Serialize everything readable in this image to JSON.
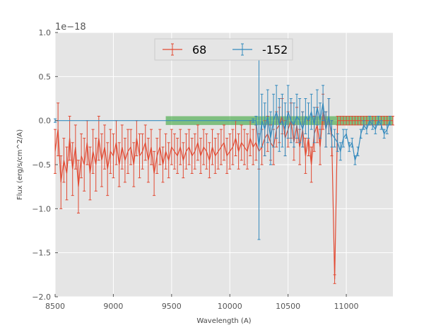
{
  "chart_data": {
    "type": "line",
    "title": "",
    "xlabel": "Wavelength (A)",
    "ylabel": "Flux (erg/s/cm^2/A)",
    "y_offset_label": "1e−18",
    "xlim": [
      8500,
      11400
    ],
    "ylim": [
      -2.0,
      1.0
    ],
    "x_ticks": [
      8500,
      9000,
      9500,
      10000,
      10500,
      11000
    ],
    "y_ticks": [
      1.0,
      0.5,
      0.0,
      -0.5,
      -1.0,
      -1.5,
      -2.0
    ],
    "x_tick_labels": [
      "8500",
      "9000",
      "9500",
      "10000",
      "10500",
      "11000"
    ],
    "y_tick_labels": [
      "1.0",
      "0.5",
      "0.0",
      "−0.5",
      "−1.0",
      "−1.5",
      "−2.0"
    ],
    "legend_position": "top-center",
    "grid": true,
    "background_color": "#e5e5e5",
    "series": [
      {
        "name": "68",
        "color": "#e24a33",
        "x": [
          8500,
          8525,
          8550,
          8575,
          8600,
          8625,
          8650,
          8675,
          8700,
          8725,
          8750,
          8775,
          8800,
          8825,
          8850,
          8875,
          8900,
          8925,
          8950,
          8975,
          9000,
          9025,
          9050,
          9075,
          9100,
          9125,
          9150,
          9175,
          9200,
          9225,
          9250,
          9275,
          9300,
          9325,
          9350,
          9375,
          9400,
          9425,
          9450,
          9475,
          9500,
          9525,
          9550,
          9575,
          9600,
          9625,
          9650,
          9675,
          9700,
          9725,
          9750,
          9775,
          9800,
          9825,
          9850,
          9875,
          9900,
          9925,
          9950,
          9975,
          10000,
          10025,
          10050,
          10075,
          10100,
          10125,
          10150,
          10175,
          10200,
          10225,
          10250,
          10275,
          10300,
          10325,
          10350,
          10375,
          10400,
          10425,
          10450,
          10475,
          10500,
          10525,
          10550,
          10575,
          10600,
          10625,
          10650,
          10675,
          10700,
          10725,
          10750,
          10775,
          10800,
          10825,
          10850,
          10875,
          10900,
          10925,
          10950,
          10975,
          11000,
          11025,
          11050,
          11075,
          11100,
          11125,
          11150,
          11175,
          11200,
          11225,
          11250,
          11275,
          11300,
          11325,
          11350,
          11375,
          11400
        ],
        "y": [
          -0.35,
          -0.1,
          -0.7,
          -0.45,
          -0.6,
          -0.2,
          -0.55,
          -0.3,
          -0.75,
          -0.4,
          -0.5,
          -0.25,
          -0.6,
          -0.35,
          -0.5,
          -0.2,
          -0.45,
          -0.3,
          -0.55,
          -0.35,
          -0.4,
          -0.25,
          -0.5,
          -0.3,
          -0.45,
          -0.35,
          -0.3,
          -0.5,
          -0.2,
          -0.4,
          -0.35,
          -0.25,
          -0.45,
          -0.3,
          -0.6,
          -0.4,
          -0.3,
          -0.5,
          -0.35,
          -0.45,
          -0.3,
          -0.35,
          -0.4,
          -0.3,
          -0.45,
          -0.35,
          -0.3,
          -0.4,
          -0.35,
          -0.25,
          -0.4,
          -0.3,
          -0.35,
          -0.45,
          -0.3,
          -0.4,
          -0.35,
          -0.3,
          -0.25,
          -0.4,
          -0.35,
          -0.3,
          -0.2,
          -0.35,
          -0.25,
          -0.3,
          -0.35,
          -0.2,
          -0.3,
          -0.25,
          -0.35,
          -0.3,
          -0.2,
          -0.15,
          -0.25,
          -0.3,
          -0.1,
          -0.05,
          0.05,
          -0.2,
          -0.1,
          0.0,
          -0.25,
          -0.05,
          -0.3,
          -0.1,
          -0.4,
          -0.2,
          -0.5,
          -0.15,
          -0.05,
          -0.3,
          0.1,
          -0.1,
          0.05,
          -0.2,
          -1.8,
          0.0,
          0.0,
          0.0,
          0.0,
          0.0,
          0.0,
          0.0,
          0.0,
          0.0,
          0.0,
          0.0,
          0.0,
          0.0,
          0.0,
          0.0,
          0.0,
          0.0,
          0.0,
          0.0,
          0.0
        ],
        "yerr": [
          0.25,
          0.3,
          0.3,
          0.25,
          0.3,
          0.25,
          0.3,
          0.25,
          0.3,
          0.25,
          0.3,
          0.25,
          0.3,
          0.25,
          0.3,
          0.25,
          0.3,
          0.25,
          0.3,
          0.25,
          0.25,
          0.25,
          0.25,
          0.25,
          0.25,
          0.25,
          0.2,
          0.25,
          0.2,
          0.25,
          0.2,
          0.2,
          0.25,
          0.2,
          0.25,
          0.2,
          0.2,
          0.2,
          0.2,
          0.2,
          0.2,
          0.2,
          0.2,
          0.2,
          0.2,
          0.2,
          0.2,
          0.2,
          0.2,
          0.2,
          0.2,
          0.2,
          0.2,
          0.2,
          0.2,
          0.2,
          0.2,
          0.2,
          0.2,
          0.2,
          0.2,
          0.2,
          0.2,
          0.2,
          0.2,
          0.2,
          0.2,
          0.2,
          0.2,
          0.2,
          0.2,
          0.2,
          0.2,
          0.2,
          0.2,
          0.2,
          0.2,
          0.2,
          0.2,
          0.2,
          0.2,
          0.2,
          0.2,
          0.2,
          0.2,
          0.2,
          0.2,
          0.2,
          0.2,
          0.2,
          0.2,
          0.2,
          0.2,
          0.2,
          0.2,
          0.2,
          0.05,
          0.05,
          0.05,
          0.05,
          0.05,
          0.05,
          0.05,
          0.05,
          0.05,
          0.05,
          0.05,
          0.05,
          0.05,
          0.05,
          0.05,
          0.05,
          0.05,
          0.05,
          0.05,
          0.05,
          0.05
        ]
      },
      {
        "name": "-152",
        "color": "#348abd",
        "x": [
          8500,
          10200,
          10225,
          10250,
          10275,
          10300,
          10325,
          10350,
          10375,
          10400,
          10425,
          10450,
          10475,
          10500,
          10525,
          10550,
          10575,
          10600,
          10625,
          10650,
          10675,
          10700,
          10725,
          10750,
          10775,
          10800,
          10825,
          10850,
          10875,
          10900,
          10925,
          10950,
          10975,
          11000,
          11025,
          11050,
          11075,
          11100,
          11125,
          11150,
          11175,
          11200,
          11225,
          11250,
          11275,
          11300,
          11325,
          11350,
          11375
        ],
        "y": [
          0.0,
          0.0,
          0.0,
          -0.3,
          0.0,
          -0.1,
          0.05,
          -0.2,
          0.0,
          0.1,
          -0.05,
          0.0,
          -0.1,
          0.1,
          0.0,
          -0.05,
          0.05,
          0.0,
          -0.1,
          0.05,
          0.0,
          0.1,
          -0.05,
          0.15,
          0.0,
          0.2,
          -0.1,
          0.05,
          -0.15,
          -0.2,
          -0.25,
          -0.35,
          -0.2,
          -0.15,
          -0.3,
          -0.25,
          -0.45,
          -0.35,
          -0.15,
          -0.05,
          -0.1,
          0.0,
          -0.05,
          -0.1,
          0.0,
          -0.05,
          -0.15,
          -0.1,
          0.0
        ],
        "yerr": [
          0.02,
          0.02,
          0.05,
          1.05,
          0.3,
          0.3,
          0.3,
          0.3,
          0.3,
          0.3,
          0.3,
          0.3,
          0.3,
          0.3,
          0.25,
          0.25,
          0.25,
          0.25,
          0.2,
          0.2,
          0.2,
          0.2,
          0.2,
          0.2,
          0.2,
          0.2,
          0.2,
          0.2,
          0.15,
          0.1,
          0.1,
          0.1,
          0.1,
          0.05,
          0.05,
          0.05,
          0.05,
          0.05,
          0.05,
          0.05,
          0.05,
          0.05,
          0.05,
          0.05,
          0.05,
          0.05,
          0.05,
          0.05,
          0.05
        ]
      }
    ],
    "bands": [
      {
        "xmin": 9450,
        "xmax": 11400,
        "ymin": -0.05,
        "ymax": 0.05,
        "color": "#2ca02c"
      }
    ]
  }
}
